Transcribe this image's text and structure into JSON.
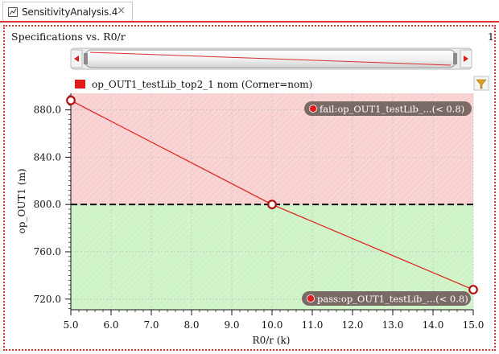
{
  "tab": {
    "title": "SensitivityAnalysis.4",
    "close": "×"
  },
  "chart_title": "Specifications vs. R0/r",
  "chart_title_right": "1",
  "legend_label": "op_OUT1_testLib_top2_1 nom (Corner=nom)",
  "colors": {
    "series": "#e11b1b",
    "fail_region": "#f9d0d0",
    "pass_region": "#cdf3c6",
    "tag_bg": "#7a6a66",
    "accent_tab": "#d83232"
  },
  "icons": {
    "filter": "filter-icon",
    "scroll_left": "scroll-left-icon",
    "scroll_right": "scroll-right-icon"
  },
  "chart_data": {
    "type": "line",
    "xlabel": "R0/r (k)",
    "ylabel": "op_OUT1 (m)",
    "xlim": [
      5.0,
      15.0
    ],
    "ylim": [
      711,
      894
    ],
    "x_ticks": [
      5.0,
      6.0,
      7.0,
      8.0,
      9.0,
      10.0,
      11.0,
      12.0,
      13.0,
      14.0,
      15.0
    ],
    "y_ticks": [
      720.0,
      760.0,
      800.0,
      840.0,
      880.0
    ],
    "spec_limit": 800.0,
    "series": [
      {
        "name": "op_OUT1_testLib_top2_1 nom (Corner=nom)",
        "x": [
          5.0,
          10.0,
          15.0
        ],
        "y": [
          888.0,
          800.0,
          728.0
        ]
      }
    ],
    "regions": [
      {
        "label": "fail:op_OUT1_testLib_...(< 0.8)",
        "from": 800.0,
        "to": 894
      },
      {
        "label": "pass:op_OUT1_testLib_...(< 0.8)",
        "from": 711,
        "to": 800.0
      }
    ]
  }
}
